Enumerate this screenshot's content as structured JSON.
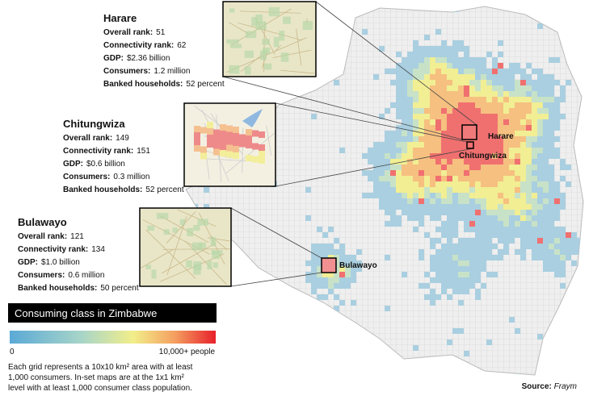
{
  "cities": [
    {
      "name": "Harare",
      "map_label": "Harare",
      "stats": [
        {
          "label": "Overall rank:",
          "value": "51"
        },
        {
          "label": "Connectivity rank:",
          "value": "62"
        },
        {
          "label": "GDP:",
          "value": "$2.36 billion"
        },
        {
          "label": "Consumers:",
          "value": "1.2 million"
        },
        {
          "label": "Banked households:",
          "value": "52 percent"
        }
      ]
    },
    {
      "name": "Chitungwiza",
      "map_label": "Chitungwiza",
      "stats": [
        {
          "label": "Overall rank:",
          "value": "149"
        },
        {
          "label": "Connectivity rank:",
          "value": "151"
        },
        {
          "label": "GDP:",
          "value": "$0.6 billion"
        },
        {
          "label": "Consumers:",
          "value": "0.3 million"
        },
        {
          "label": "Banked households:",
          "value": "52 percent"
        }
      ]
    },
    {
      "name": "Bulawayo",
      "map_label": "Bulawayo",
      "stats": [
        {
          "label": "Overall rank:",
          "value": "121"
        },
        {
          "label": "Connectivity rank:",
          "value": "134"
        },
        {
          "label": "GDP:",
          "value": "$1.0 billion"
        },
        {
          "label": "Consumers:",
          "value": "0.6 million"
        },
        {
          "label": "Banked households:",
          "value": "50 percent"
        }
      ]
    }
  ],
  "legend": {
    "title": "Consuming class in Zimbabwe",
    "min_label": "0",
    "max_label": "10,000+ people"
  },
  "note": [
    "Each grid represents a 10x10 km² area with at least",
    "1,000 consumers. In-set maps are at the 1x1 km²",
    "level with at least 1,000 consumer class population."
  ],
  "source": {
    "label": "Source:",
    "value": "Fraym"
  }
}
